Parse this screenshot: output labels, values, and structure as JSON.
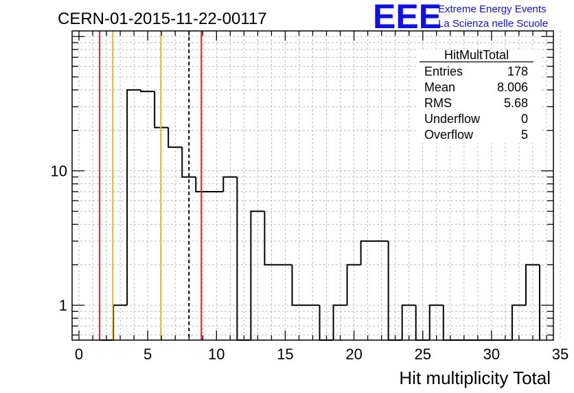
{
  "title": "CERN-01-2015-11-22-00117",
  "logo": {
    "mark": "EEE",
    "line1": "Extreme Energy Events",
    "line2": "La Scienza nelle Scuole",
    "color": "#1010e8"
  },
  "stats": {
    "name": "HitMultTotal",
    "rows": [
      {
        "label": "Entries",
        "value": "178"
      },
      {
        "label": "Mean",
        "value": "8.006"
      },
      {
        "label": "RMS",
        "value": "5.68"
      },
      {
        "label": "Underflow",
        "value": "0"
      },
      {
        "label": "Overflow",
        "value": "5"
      }
    ]
  },
  "chart_data": {
    "type": "bar",
    "histogram": true,
    "xlabel": "Hit multiplicity Total",
    "ylabel": "",
    "xlim": [
      -0.5,
      34.5
    ],
    "ylim": [
      0.55,
      110
    ],
    "log_y": true,
    "grid": true,
    "x_ticks": [
      0,
      5,
      10,
      15,
      20,
      25,
      30,
      35
    ],
    "y_ticks": [
      {
        "value": 1,
        "label": "1"
      },
      {
        "value": 10,
        "label": "10"
      }
    ],
    "bin_width": 1,
    "bins": [
      {
        "center": 2,
        "count": 0
      },
      {
        "center": 3,
        "count": 1
      },
      {
        "center": 4,
        "count": 40
      },
      {
        "center": 5,
        "count": 39
      },
      {
        "center": 6,
        "count": 21
      },
      {
        "center": 7,
        "count": 15
      },
      {
        "center": 8,
        "count": 9
      },
      {
        "center": 9,
        "count": 7
      },
      {
        "center": 10,
        "count": 7
      },
      {
        "center": 11,
        "count": 9
      },
      {
        "center": 12,
        "count": 0
      },
      {
        "center": 13,
        "count": 5
      },
      {
        "center": 14,
        "count": 2
      },
      {
        "center": 15,
        "count": 2
      },
      {
        "center": 16,
        "count": 1
      },
      {
        "center": 17,
        "count": 1
      },
      {
        "center": 18,
        "count": 0
      },
      {
        "center": 19,
        "count": 1
      },
      {
        "center": 20,
        "count": 2
      },
      {
        "center": 21,
        "count": 3
      },
      {
        "center": 22,
        "count": 3
      },
      {
        "center": 23,
        "count": 0
      },
      {
        "center": 24,
        "count": 1
      },
      {
        "center": 25,
        "count": 0
      },
      {
        "center": 26,
        "count": 1
      },
      {
        "center": 27,
        "count": 0
      },
      {
        "center": 28,
        "count": 0
      },
      {
        "center": 29,
        "count": 0
      },
      {
        "center": 30,
        "count": 0
      },
      {
        "center": 31,
        "count": 0
      },
      {
        "center": 32,
        "count": 1
      },
      {
        "center": 33,
        "count": 2
      }
    ],
    "vertical_lines": [
      {
        "x": 1.5,
        "color": "#e81c1c",
        "style": "solid"
      },
      {
        "x": 2.45,
        "color": "#f0c000",
        "style": "solid"
      },
      {
        "x": 5.95,
        "color": "#f0c000",
        "style": "solid"
      },
      {
        "x": 8.0,
        "color": "#000000",
        "style": "dashed"
      },
      {
        "x": 8.9,
        "color": "#e81c1c",
        "style": "solid"
      }
    ]
  }
}
